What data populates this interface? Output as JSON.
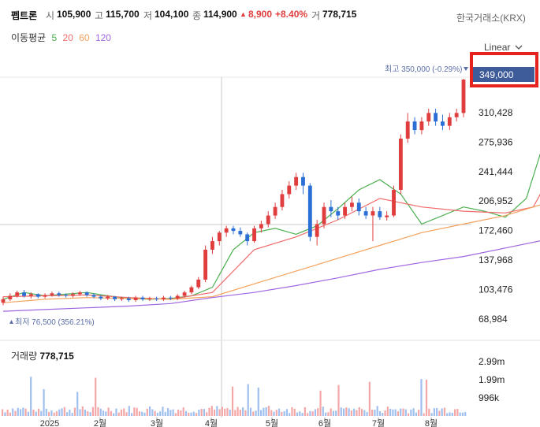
{
  "header": {
    "stock_name": "펩트론",
    "open_label": "시",
    "open_value": "105,900",
    "high_label": "고",
    "high_value": "115,700",
    "low_label": "저",
    "low_value": "104,100",
    "close_label": "종",
    "close_value": "114,900",
    "change_arrow": "▲",
    "change_value": "8,900",
    "change_pct": "+8.40%",
    "volume_label": "거",
    "volume_value": "778,715",
    "exchange": "한국거래소(KRX)"
  },
  "moving_averages": {
    "label": "이동평균",
    "items": [
      {
        "period": "5",
        "color": "#4caf50"
      },
      {
        "period": "20",
        "color": "#ef6b6b"
      },
      {
        "period": "60",
        "color": "#f5a25d"
      },
      {
        "period": "120",
        "color": "#a066e0"
      }
    ]
  },
  "scale_selector": {
    "value": "Linear",
    "icon": "chevron-down-icon"
  },
  "price_tag": "349,000",
  "annotations": {
    "high": "최고 350,000 (-0.29%)",
    "low": "최저 76,500 (356.21%)"
  },
  "volume_panel": {
    "label": "거래량",
    "value": "778,715",
    "ticks": [
      "2.99m",
      "1.99m",
      "996k"
    ]
  },
  "colors": {
    "up": "#e03e3e",
    "down": "#2b6fd6",
    "ma5": "#4caf50",
    "ma20": "#ef6b6b",
    "ma60": "#f5a25d",
    "ma120": "#a066e0",
    "highlight": "#e6221e",
    "price_tag": "#3e5c9a"
  },
  "chart_data": {
    "type": "line",
    "title": "",
    "y_ticks": [
      "310,428",
      "275,936",
      "241,444",
      "206,952",
      "172,460",
      "137,968",
      "103,476",
      "68,984"
    ],
    "y_tick_values": [
      310428,
      275936,
      241444,
      206952,
      172460,
      137968,
      103476,
      68984
    ],
    "x_ticks": [
      "2025",
      "2월",
      "3월",
      "4월",
      "5월",
      "6월",
      "7월",
      "8월"
    ],
    "ylim": [
      55000,
      350000
    ],
    "grid": false,
    "series": [
      {
        "name": "5",
        "points": [
          [
            0,
            92000
          ],
          [
            3,
            100000
          ],
          [
            6,
            96000
          ],
          [
            9,
            98000
          ],
          [
            12,
            100000
          ],
          [
            15,
            96000
          ],
          [
            18,
            93000
          ],
          [
            21,
            92000
          ],
          [
            24,
            93000
          ],
          [
            27,
            96000
          ],
          [
            30,
            106000
          ],
          [
            33,
            150000
          ],
          [
            36,
            170000
          ],
          [
            39,
            175000
          ],
          [
            42,
            168000
          ],
          [
            45,
            178000
          ],
          [
            48,
            198000
          ],
          [
            51,
            220000
          ],
          [
            54,
            232000
          ],
          [
            57,
            215000
          ],
          [
            60,
            180000
          ],
          [
            63,
            190000
          ],
          [
            66,
            200000
          ],
          [
            69,
            195000
          ],
          [
            72,
            188000
          ],
          [
            75,
            210000
          ],
          [
            78,
            288000
          ],
          [
            81,
            300000
          ],
          [
            84,
            295000
          ],
          [
            86,
            300000
          ],
          [
            88,
            310000
          ]
        ]
      },
      {
        "name": "20",
        "points": [
          [
            0,
            95000
          ],
          [
            6,
            96000
          ],
          [
            12,
            97000
          ],
          [
            18,
            94000
          ],
          [
            24,
            92000
          ],
          [
            30,
            100000
          ],
          [
            36,
            150000
          ],
          [
            42,
            165000
          ],
          [
            48,
            185000
          ],
          [
            54,
            210000
          ],
          [
            60,
            200000
          ],
          [
            66,
            195000
          ],
          [
            72,
            193000
          ],
          [
            76,
            200000
          ],
          [
            80,
            260000
          ],
          [
            84,
            280000
          ],
          [
            88,
            300000
          ]
        ]
      },
      {
        "name": "60",
        "points": [
          [
            0,
            88000
          ],
          [
            6,
            92000
          ],
          [
            12,
            94000
          ],
          [
            18,
            93000
          ],
          [
            24,
            92000
          ],
          [
            30,
            95000
          ],
          [
            36,
            110000
          ],
          [
            42,
            125000
          ],
          [
            48,
            140000
          ],
          [
            54,
            155000
          ],
          [
            60,
            170000
          ],
          [
            66,
            180000
          ],
          [
            72,
            190000
          ],
          [
            78,
            205000
          ],
          [
            84,
            220000
          ],
          [
            88,
            232000
          ]
        ]
      },
      {
        "name": "120",
        "points": [
          [
            0,
            78000
          ],
          [
            6,
            80000
          ],
          [
            12,
            82000
          ],
          [
            18,
            84000
          ],
          [
            24,
            87000
          ],
          [
            30,
            94000
          ],
          [
            36,
            100000
          ],
          [
            42,
            108000
          ],
          [
            48,
            117000
          ],
          [
            54,
            127000
          ],
          [
            60,
            135000
          ],
          [
            66,
            142000
          ],
          [
            72,
            152000
          ],
          [
            78,
            162000
          ],
          [
            84,
            170000
          ],
          [
            88,
            178000
          ]
        ]
      }
    ],
    "candles": [
      [
        0,
        88000,
        92000,
        85000,
        95000
      ],
      [
        1,
        92000,
        96000,
        90000,
        99000
      ],
      [
        2,
        96000,
        100000,
        94000,
        102000
      ],
      [
        3,
        100000,
        96000,
        94000,
        103000
      ],
      [
        4,
        96000,
        98000,
        93000,
        100000
      ],
      [
        5,
        98000,
        95000,
        93000,
        99000
      ],
      [
        6,
        95000,
        97000,
        93000,
        99000
      ],
      [
        7,
        97000,
        99000,
        95000,
        101000
      ],
      [
        8,
        99000,
        97000,
        95000,
        101000
      ],
      [
        9,
        97000,
        96000,
        94000,
        99000
      ],
      [
        10,
        96000,
        98000,
        94000,
        100000
      ],
      [
        11,
        98000,
        100000,
        96000,
        102000
      ],
      [
        12,
        100000,
        97000,
        95000,
        101000
      ],
      [
        13,
        97000,
        95000,
        93000,
        99000
      ],
      [
        14,
        95000,
        93000,
        91000,
        97000
      ],
      [
        15,
        93000,
        95000,
        91000,
        97000
      ],
      [
        16,
        95000,
        92000,
        90000,
        96000
      ],
      [
        17,
        92000,
        93000,
        90000,
        95000
      ],
      [
        18,
        93000,
        91000,
        89000,
        95000
      ],
      [
        19,
        91000,
        94000,
        89000,
        96000
      ],
      [
        20,
        94000,
        92000,
        90000,
        96000
      ],
      [
        21,
        92000,
        93000,
        90000,
        95000
      ],
      [
        22,
        93000,
        92000,
        90000,
        95000
      ],
      [
        23,
        92000,
        94000,
        90000,
        96000
      ],
      [
        24,
        94000,
        93000,
        91000,
        96000
      ],
      [
        25,
        93000,
        96000,
        91000,
        98000
      ],
      [
        26,
        96000,
        100000,
        94000,
        102000
      ],
      [
        27,
        100000,
        106000,
        98000,
        108000
      ],
      [
        28,
        106000,
        115000,
        104000,
        118000
      ],
      [
        29,
        115000,
        150000,
        112000,
        155000
      ],
      [
        30,
        150000,
        160000,
        145000,
        165000
      ],
      [
        31,
        160000,
        170000,
        155000,
        172000
      ],
      [
        32,
        170000,
        175000,
        165000,
        178000
      ],
      [
        33,
        175000,
        172000,
        168000,
        178000
      ],
      [
        34,
        172000,
        168000,
        165000,
        176000
      ],
      [
        35,
        168000,
        160000,
        155000,
        170000
      ],
      [
        36,
        160000,
        175000,
        158000,
        178000
      ],
      [
        37,
        175000,
        180000,
        170000,
        184000
      ],
      [
        38,
        180000,
        190000,
        176000,
        195000
      ],
      [
        39,
        190000,
        200000,
        186000,
        205000
      ],
      [
        40,
        200000,
        215000,
        196000,
        220000
      ],
      [
        41,
        215000,
        225000,
        210000,
        230000
      ],
      [
        42,
        225000,
        235000,
        220000,
        240000
      ],
      [
        43,
        235000,
        225000,
        215000,
        240000
      ],
      [
        44,
        225000,
        165000,
        160000,
        228000
      ],
      [
        45,
        165000,
        180000,
        155000,
        185000
      ],
      [
        46,
        180000,
        200000,
        175000,
        205000
      ],
      [
        47,
        200000,
        195000,
        188000,
        208000
      ],
      [
        48,
        195000,
        190000,
        185000,
        200000
      ],
      [
        49,
        190000,
        200000,
        186000,
        205000
      ],
      [
        50,
        200000,
        205000,
        195000,
        212000
      ],
      [
        51,
        205000,
        195000,
        190000,
        210000
      ],
      [
        52,
        195000,
        190000,
        186000,
        200000
      ],
      [
        53,
        190000,
        195000,
        160000,
        200000
      ],
      [
        54,
        195000,
        188000,
        185000,
        200000
      ],
      [
        55,
        188000,
        190000,
        184000,
        195000
      ],
      [
        56,
        190000,
        220000,
        188000,
        225000
      ],
      [
        57,
        220000,
        280000,
        215000,
        285000
      ],
      [
        58,
        280000,
        300000,
        275000,
        310000
      ],
      [
        59,
        300000,
        290000,
        285000,
        305000
      ],
      [
        60,
        290000,
        300000,
        285000,
        305000
      ],
      [
        61,
        300000,
        310000,
        295000,
        315000
      ],
      [
        62,
        310000,
        300000,
        295000,
        315000
      ],
      [
        63,
        300000,
        295000,
        290000,
        308000
      ],
      [
        64,
        295000,
        305000,
        290000,
        310000
      ],
      [
        65,
        305000,
        310000,
        300000,
        315000
      ],
      [
        66,
        310000,
        349000,
        305000,
        350000
      ]
    ],
    "volume": {
      "ticks": [
        2990000,
        1990000,
        996000
      ],
      "max": 3300000
    }
  }
}
